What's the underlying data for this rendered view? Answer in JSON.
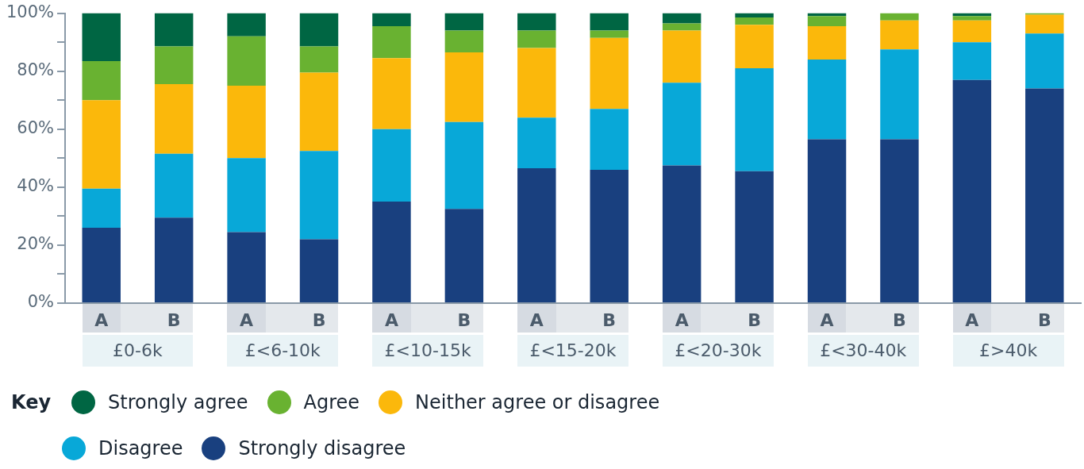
{
  "chart_data": {
    "type": "bar",
    "stacked": true,
    "legend": "bottom",
    "legend_title": "Key",
    "categories": [
      "A",
      "B",
      "A",
      "B",
      "A",
      "B",
      "A",
      "B",
      "A",
      "B",
      "A",
      "B",
      "A",
      "B"
    ],
    "annotations": [
      "£0-6k",
      "£<6-10k",
      "£<10-15k",
      "£<15-20k",
      "£<20-30k",
      "£<30-40k",
      "£>40k"
    ],
    "ylim": [
      0,
      100
    ],
    "yticks": [
      {
        "value": 0,
        "label": "0%"
      },
      {
        "value": 10,
        "label": null
      },
      {
        "value": 20,
        "label": "20%"
      },
      {
        "value": 30,
        "label": null
      },
      {
        "value": 40,
        "label": "40%"
      },
      {
        "value": 50,
        "label": null
      },
      {
        "value": 60,
        "label": "60%"
      },
      {
        "value": 70,
        "label": null
      },
      {
        "value": 80,
        "label": "80%"
      },
      {
        "value": 90,
        "label": null
      },
      {
        "value": 100,
        "label": "100%"
      }
    ],
    "series": [
      {
        "name": "Strongly disagree",
        "color": "#19407f",
        "values": [
          26,
          29.5,
          24.5,
          22,
          35,
          32.5,
          46.5,
          46,
          47.5,
          45.5,
          56.5,
          56.5,
          77,
          74
        ]
      },
      {
        "name": "Disagree",
        "color": "#08a8d8",
        "values": [
          13.5,
          22,
          25.5,
          30.5,
          25,
          30,
          17.5,
          21,
          28.5,
          35.5,
          27.5,
          31,
          13,
          19
        ]
      },
      {
        "name": "Neither agree or disagree",
        "color": "#fbb80b",
        "values": [
          30.5,
          24,
          25,
          27,
          24.5,
          24,
          24,
          24.5,
          18,
          15,
          11.5,
          10,
          7.5,
          6.5
        ]
      },
      {
        "name": "Agree",
        "color": "#69b231",
        "values": [
          13.5,
          13,
          17,
          9,
          11,
          7.5,
          6,
          2.5,
          2.5,
          2.5,
          3.5,
          2.5,
          1.5,
          0.5
        ]
      },
      {
        "name": "Strongly agree",
        "color": "#006643",
        "values": [
          16.5,
          11.5,
          8,
          11.5,
          4.5,
          6,
          6,
          6,
          3.5,
          1.5,
          1,
          0,
          1,
          0
        ]
      }
    ]
  }
}
